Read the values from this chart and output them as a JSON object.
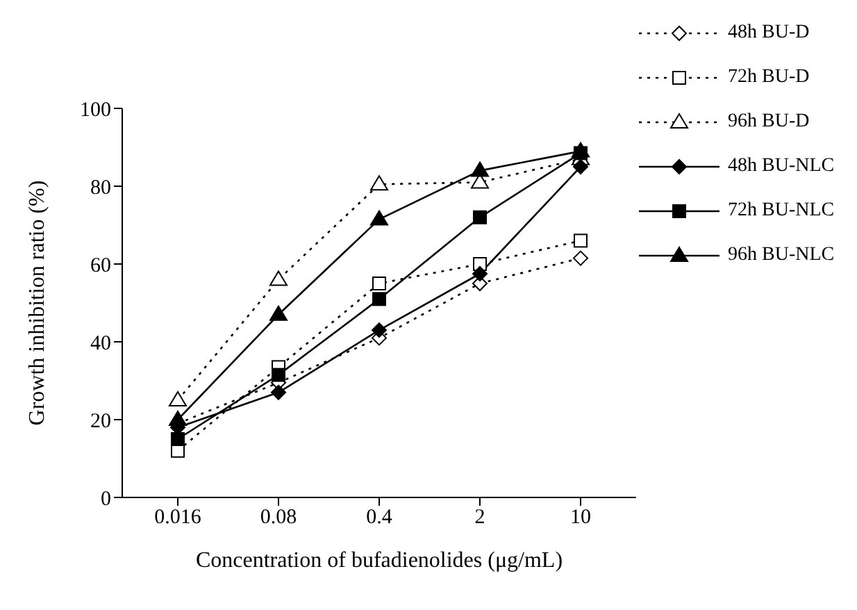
{
  "chart_data": {
    "type": "line",
    "xlabel": "Concentration of bufadienolides (μg/mL)",
    "ylabel": "Growth inhibition ratio (%)",
    "categories": [
      "0.016",
      "0.08",
      "0.4",
      "2",
      "10"
    ],
    "ylim": [
      0,
      100
    ],
    "yticks": [
      0,
      20,
      40,
      60,
      80,
      100
    ],
    "grid": false,
    "legend": "right",
    "series": [
      {
        "name": "48h BU-D",
        "color": "#000000",
        "marker": "diamond",
        "line_style": "dotted",
        "values": [
          19,
          29.5,
          41,
          55,
          61.5
        ]
      },
      {
        "name": "72h BU-D",
        "color": "#000000",
        "marker": "square",
        "line_style": "dotted",
        "values": [
          12,
          33.5,
          55,
          60,
          66
        ]
      },
      {
        "name": "96h BU-D",
        "color": "#000000",
        "marker": "triangle",
        "line_style": "dotted",
        "values": [
          25,
          56,
          80.5,
          81,
          87
        ]
      },
      {
        "name": "48h BU-NLC",
        "color": "#000000",
        "marker": "diamond",
        "line_style": "solid",
        "values": [
          18,
          27,
          43,
          57.5,
          85
        ]
      },
      {
        "name": "72h BU-NLC",
        "color": "#000000",
        "marker": "square",
        "line_style": "solid",
        "values": [
          15,
          31.5,
          51,
          72,
          88.5
        ]
      },
      {
        "name": "96h BU-NLC",
        "color": "#000000",
        "marker": "triangle",
        "line_style": "solid",
        "values": [
          20,
          47,
          71.5,
          84,
          89
        ]
      }
    ]
  }
}
